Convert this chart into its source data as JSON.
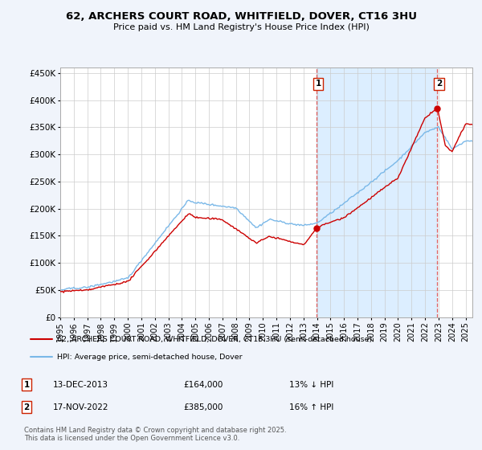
{
  "title": "62, ARCHERS COURT ROAD, WHITFIELD, DOVER, CT16 3HU",
  "subtitle": "Price paid vs. HM Land Registry's House Price Index (HPI)",
  "legend_line1": "62, ARCHERS COURT ROAD, WHITFIELD, DOVER, CT16 3HU (semi-detached house)",
  "legend_line2": "HPI: Average price, semi-detached house, Dover",
  "annotation1_date": "13-DEC-2013",
  "annotation1_price": "£164,000",
  "annotation1_hpi": "13% ↓ HPI",
  "annotation2_date": "17-NOV-2022",
  "annotation2_price": "£385,000",
  "annotation2_hpi": "16% ↑ HPI",
  "footer": "Contains HM Land Registry data © Crown copyright and database right 2025.\nThis data is licensed under the Open Government Licence v3.0.",
  "hpi_color": "#7ab8e8",
  "price_color": "#cc0000",
  "vline_color": "#e06060",
  "shade_color": "#dceeff",
  "bg_color": "#f0f4fb",
  "plot_bg": "#ffffff",
  "ylim": [
    0,
    460000
  ],
  "yticks": [
    0,
    50000,
    100000,
    150000,
    200000,
    250000,
    300000,
    350000,
    400000,
    450000
  ],
  "anno1_x_year": 2013.95,
  "anno2_x_year": 2022.88,
  "anno1_y": 164000,
  "anno2_y": 385000,
  "xmin": 1995,
  "xmax": 2025.5
}
